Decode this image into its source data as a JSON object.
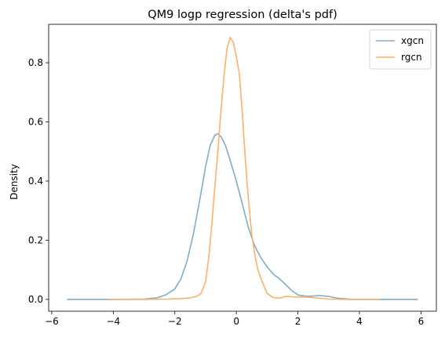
{
  "chart_data": {
    "type": "line",
    "title": "QM9 logp regression (delta's pdf)",
    "xlabel": "",
    "ylabel": "Density",
    "xlim": [
      -6.1,
      6.5
    ],
    "ylim": [
      -0.04,
      0.93
    ],
    "x_ticks": [
      -6,
      -4,
      -2,
      0,
      2,
      4,
      6
    ],
    "y_ticks": [
      0.0,
      0.2,
      0.4,
      0.6,
      0.8
    ],
    "y_tick_labels": [
      "0.0",
      "0.2",
      "0.4",
      "0.6",
      "0.8"
    ],
    "grid": false,
    "legend": "top-right",
    "series": [
      {
        "name": "xgcn",
        "color": "#7aaecb",
        "points": [
          [
            -5.5,
            0.0
          ],
          [
            -4.0,
            0.0
          ],
          [
            -3.0,
            0.001
          ],
          [
            -2.6,
            0.005
          ],
          [
            -2.3,
            0.015
          ],
          [
            -2.0,
            0.035
          ],
          [
            -1.8,
            0.07
          ],
          [
            -1.6,
            0.13
          ],
          [
            -1.4,
            0.22
          ],
          [
            -1.2,
            0.33
          ],
          [
            -1.0,
            0.45
          ],
          [
            -0.85,
            0.52
          ],
          [
            -0.7,
            0.555
          ],
          [
            -0.6,
            0.56
          ],
          [
            -0.5,
            0.55
          ],
          [
            -0.35,
            0.52
          ],
          [
            -0.2,
            0.47
          ],
          [
            0.0,
            0.4
          ],
          [
            0.2,
            0.32
          ],
          [
            0.4,
            0.24
          ],
          [
            0.6,
            0.18
          ],
          [
            0.8,
            0.14
          ],
          [
            1.0,
            0.11
          ],
          [
            1.2,
            0.085
          ],
          [
            1.4,
            0.07
          ],
          [
            1.6,
            0.05
          ],
          [
            1.8,
            0.03
          ],
          [
            2.0,
            0.015
          ],
          [
            2.3,
            0.01
          ],
          [
            2.7,
            0.013
          ],
          [
            3.0,
            0.01
          ],
          [
            3.3,
            0.004
          ],
          [
            3.8,
            0.0
          ],
          [
            5.0,
            0.0
          ],
          [
            5.9,
            0.0
          ]
        ]
      },
      {
        "name": "rgcn",
        "color": "#fbb068",
        "points": [
          [
            -4.15,
            0.0
          ],
          [
            -3.0,
            0.0
          ],
          [
            -2.2,
            0.001
          ],
          [
            -1.8,
            0.003
          ],
          [
            -1.5,
            0.005
          ],
          [
            -1.3,
            0.01
          ],
          [
            -1.15,
            0.02
          ],
          [
            -1.0,
            0.06
          ],
          [
            -0.9,
            0.14
          ],
          [
            -0.8,
            0.25
          ],
          [
            -0.7,
            0.38
          ],
          [
            -0.6,
            0.5
          ],
          [
            -0.5,
            0.64
          ],
          [
            -0.4,
            0.76
          ],
          [
            -0.3,
            0.85
          ],
          [
            -0.2,
            0.885
          ],
          [
            -0.1,
            0.87
          ],
          [
            0.0,
            0.82
          ],
          [
            0.1,
            0.76
          ],
          [
            0.2,
            0.62
          ],
          [
            0.3,
            0.46
          ],
          [
            0.4,
            0.33
          ],
          [
            0.5,
            0.22
          ],
          [
            0.6,
            0.15
          ],
          [
            0.7,
            0.1
          ],
          [
            0.8,
            0.07
          ],
          [
            0.9,
            0.045
          ],
          [
            1.0,
            0.02
          ],
          [
            1.2,
            0.006
          ],
          [
            1.4,
            0.004
          ],
          [
            1.6,
            0.01
          ],
          [
            1.8,
            0.009
          ],
          [
            2.0,
            0.008
          ],
          [
            2.3,
            0.008
          ],
          [
            2.6,
            0.005
          ],
          [
            3.0,
            0.001
          ],
          [
            3.5,
            0.0
          ],
          [
            4.65,
            0.0
          ]
        ]
      }
    ]
  }
}
